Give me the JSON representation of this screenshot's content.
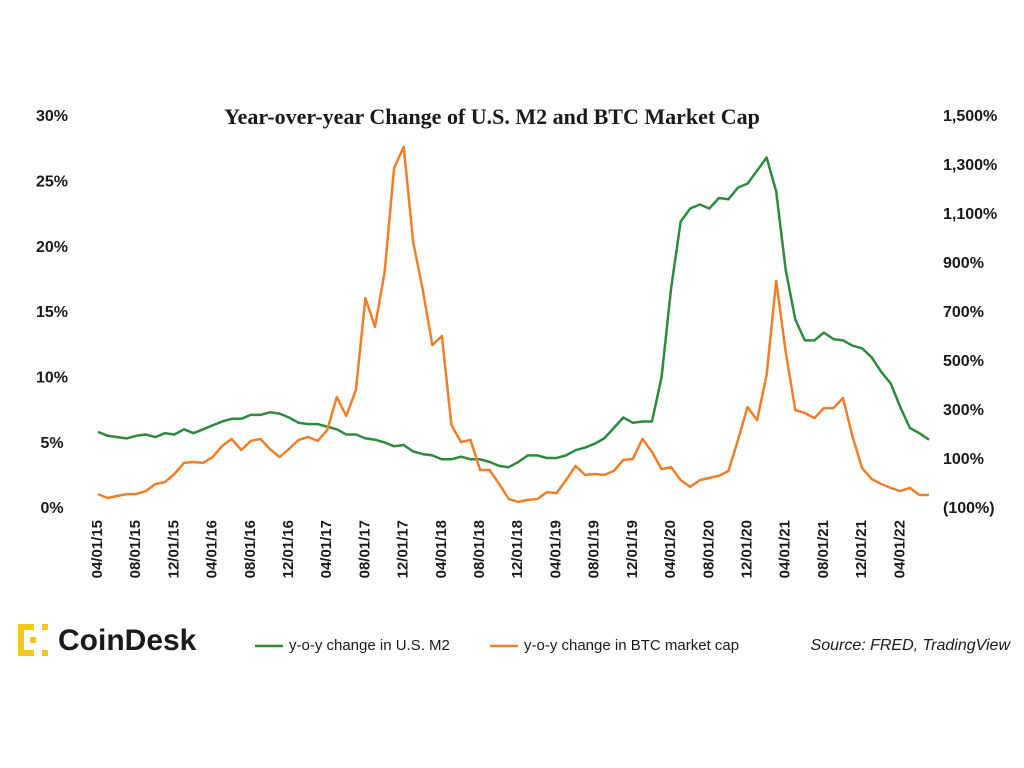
{
  "chart_data": {
    "type": "line",
    "title": "Year-over-year Change of U.S. M2 and BTC Market Cap",
    "categories": [
      "04/01/15",
      null,
      null,
      null,
      "08/01/15",
      null,
      null,
      null,
      "12/01/15",
      null,
      null,
      null,
      "04/01/16",
      null,
      null,
      null,
      "08/01/16",
      null,
      null,
      null,
      "12/01/16",
      null,
      null,
      null,
      "04/01/17",
      null,
      null,
      null,
      "08/01/17",
      null,
      null,
      null,
      "12/01/17",
      null,
      null,
      null,
      "04/01/18",
      null,
      null,
      null,
      "08/01/18",
      null,
      null,
      null,
      "12/01/18",
      null,
      null,
      null,
      "04/01/19",
      null,
      null,
      null,
      "08/01/19",
      null,
      null,
      null,
      "12/01/19",
      null,
      null,
      null,
      "04/01/20",
      null,
      null,
      null,
      "08/01/20",
      null,
      null,
      null,
      "12/01/20",
      null,
      null,
      null,
      "04/01/21",
      null,
      null,
      null,
      "08/01/21",
      null,
      null,
      null,
      "12/01/21",
      null,
      null,
      null,
      "04/01/22",
      null,
      null,
      null
    ],
    "series": [
      {
        "name": "y-o-y change in U.S. M2",
        "color": "#2e8b3e",
        "axis": "y",
        "values": [
          5.9,
          5.6,
          5.5,
          5.4,
          5.6,
          5.7,
          5.5,
          5.8,
          5.7,
          6.1,
          5.8,
          6.1,
          6.4,
          6.7,
          6.9,
          6.9,
          7.2,
          7.2,
          7.4,
          7.3,
          7.0,
          6.6,
          6.5,
          6.5,
          6.3,
          6.1,
          5.7,
          5.7,
          5.4,
          5.3,
          5.1,
          4.8,
          4.9,
          4.4,
          4.2,
          4.1,
          3.8,
          3.8,
          4.0,
          3.8,
          3.8,
          3.6,
          3.3,
          3.2,
          3.6,
          4.1,
          4.1,
          3.9,
          3.9,
          4.1,
          4.5,
          4.7,
          5.0,
          5.4,
          6.2,
          7.0,
          6.6,
          6.7,
          6.7,
          10.1,
          16.9,
          22.0,
          23.0,
          23.3,
          23.0,
          23.8,
          23.7,
          24.6,
          24.9,
          25.9,
          26.9,
          24.3,
          18.3,
          14.5,
          12.9,
          12.9,
          13.5,
          13.0,
          12.9,
          12.5,
          12.3,
          11.6,
          10.5,
          9.6,
          7.8,
          6.2,
          5.8,
          5.3
        ]
      },
      {
        "name": "y-o-y change in BTC market cap",
        "color": "#f07f2c",
        "axis": "y2",
        "values": [
          -39,
          -55,
          -47,
          -39,
          -39,
          -27,
          2,
          10,
          43,
          88,
          92,
          88,
          112,
          157,
          186,
          141,
          178,
          186,
          145,
          112,
          145,
          182,
          194,
          178,
          222,
          357,
          280,
          386,
          761,
          643,
          867,
          1292,
          1378,
          988,
          794,
          569,
          606,
          243,
          173,
          182,
          59,
          59,
          2,
          -59,
          -71,
          -63,
          -59,
          -31,
          -35,
          18,
          76,
          39,
          43,
          39,
          55,
          100,
          104,
          186,
          133,
          63,
          71,
          18,
          -10,
          18,
          27,
          35,
          55,
          182,
          316,
          263,
          447,
          831,
          541,
          304,
          292,
          271,
          312,
          312,
          353,
          194,
          67,
          22,
          2,
          -14,
          -27,
          -14,
          -43,
          -43
        ]
      }
    ],
    "ylim": [
      0,
      30
    ],
    "yticks": [
      {
        "value": 0,
        "label": "0%"
      },
      {
        "value": 5,
        "label": "5%"
      },
      {
        "value": 10,
        "label": "10%"
      },
      {
        "value": 15,
        "label": "15%"
      },
      {
        "value": 20,
        "label": "20%"
      },
      {
        "value": 25,
        "label": "25%"
      },
      {
        "value": 30,
        "label": "30%"
      }
    ],
    "y2lim": [
      -100,
      1500
    ],
    "y2ticks": [
      {
        "value": -100,
        "label": "(100%)"
      },
      {
        "value": 100,
        "label": "100%"
      },
      {
        "value": 300,
        "label": "300%"
      },
      {
        "value": 500,
        "label": "500%"
      },
      {
        "value": 700,
        "label": "700%"
      },
      {
        "value": 900,
        "label": "900%"
      },
      {
        "value": 1100,
        "label": "1,100%"
      },
      {
        "value": 1300,
        "label": "1,300%"
      },
      {
        "value": 1500,
        "label": "1,500%"
      }
    ],
    "grid": false,
    "brand": "CoinDesk",
    "source": "Source: FRED, TradingView"
  }
}
